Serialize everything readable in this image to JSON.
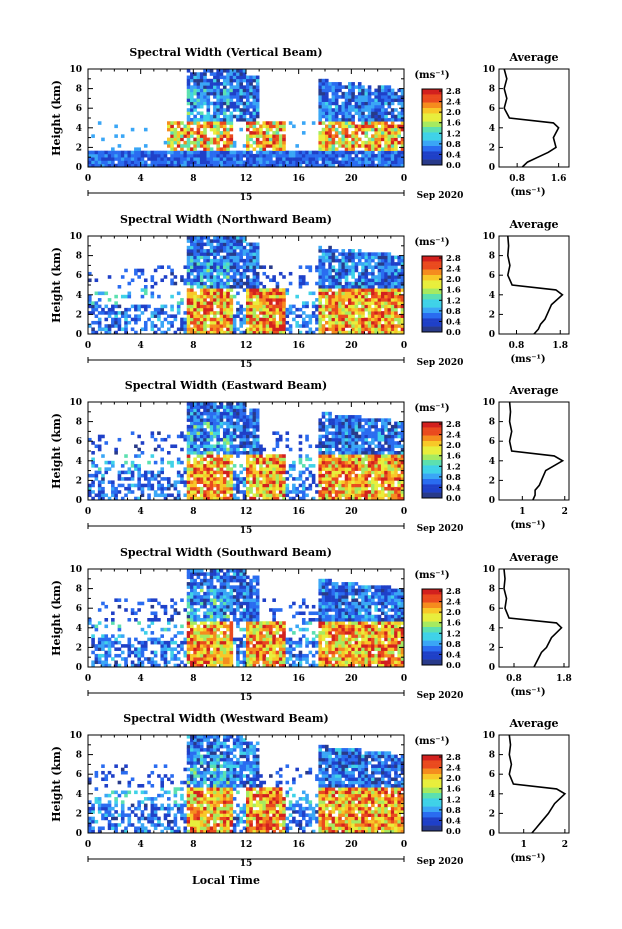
{
  "figure": {
    "date_label": "Sep 2020",
    "xlabel_bottom": "Local Time",
    "ylabel": "Height (km)",
    "avg_title": "Average",
    "unit_label": "(ms⁻¹)",
    "day_label": "15"
  },
  "chart_data": [
    {
      "type": "heatmap",
      "title": "Spectral Width (Vertical Beam)",
      "xlabel": "",
      "ylabel": "Height (km)",
      "x_ticks": [
        "0",
        "4",
        "8",
        "12",
        "16",
        "20",
        "0"
      ],
      "y_ticks": [
        "0",
        "2",
        "4",
        "6",
        "8",
        "10"
      ],
      "xlim": [
        0,
        24
      ],
      "ylim": [
        0,
        10
      ],
      "colorbar": {
        "label": "(ms⁻¹)",
        "range": [
          0,
          2.8
        ],
        "ticks": [
          "2.8",
          "2.4",
          "2.0",
          "1.6",
          "1.2",
          "0.8",
          "0.4",
          "0.0"
        ]
      },
      "average_profile": {
        "title": "Average",
        "xlabel": "(ms⁻¹)",
        "x_ticks": [
          "0.8",
          "1.6"
        ],
        "xlim": [
          0.45,
          1.8
        ],
        "y_ticks": [
          "0",
          "2",
          "4",
          "6",
          "8",
          "10"
        ],
        "height_km": [
          0,
          0.5,
          1,
          1.5,
          2,
          3,
          4,
          4.5,
          5,
          6,
          7,
          8,
          9,
          10
        ],
        "width_ms": [
          0.9,
          1.0,
          1.2,
          1.4,
          1.55,
          1.5,
          1.6,
          1.5,
          0.65,
          0.55,
          0.6,
          0.55,
          0.6,
          0.55
        ]
      }
    },
    {
      "type": "heatmap",
      "title": "Spectral Width (Northward Beam)",
      "xlabel": "",
      "ylabel": "Height (km)",
      "x_ticks": [
        "0",
        "4",
        "8",
        "12",
        "16",
        "20",
        "0"
      ],
      "y_ticks": [
        "0",
        "2",
        "4",
        "6",
        "8",
        "10"
      ],
      "xlim": [
        0,
        24
      ],
      "ylim": [
        0,
        10
      ],
      "colorbar": {
        "label": "(ms⁻¹)",
        "range": [
          0,
          2.8
        ],
        "ticks": [
          "2.8",
          "2.4",
          "2.0",
          "1.6",
          "1.2",
          "0.8",
          "0.4",
          "0.0"
        ]
      },
      "average_profile": {
        "title": "Average",
        "xlabel": "(ms⁻¹)",
        "x_ticks": [
          "0.8",
          "1.8"
        ],
        "xlim": [
          0.4,
          2.0
        ],
        "y_ticks": [
          "0",
          "2",
          "4",
          "6",
          "8",
          "10"
        ],
        "height_km": [
          0,
          0.5,
          1,
          1.5,
          2,
          3,
          4,
          4.5,
          5,
          6,
          7,
          8,
          9,
          10
        ],
        "width_ms": [
          1.2,
          1.3,
          1.35,
          1.45,
          1.5,
          1.6,
          1.85,
          1.7,
          0.7,
          0.6,
          0.65,
          0.6,
          0.62,
          0.6
        ]
      }
    },
    {
      "type": "heatmap",
      "title": "Spectral Width (Eastward Beam)",
      "xlabel": "",
      "ylabel": "Height (km)",
      "x_ticks": [
        "0",
        "4",
        "8",
        "12",
        "16",
        "20",
        "0"
      ],
      "y_ticks": [
        "0",
        "2",
        "4",
        "6",
        "8",
        "10"
      ],
      "xlim": [
        0,
        24
      ],
      "ylim": [
        0,
        10
      ],
      "colorbar": {
        "label": "(ms⁻¹)",
        "range": [
          0,
          2.8
        ],
        "ticks": [
          "2.8",
          "2.4",
          "2.0",
          "1.6",
          "1.2",
          "0.8",
          "0.4",
          "0.0"
        ]
      },
      "average_profile": {
        "title": "Average",
        "xlabel": "(ms⁻¹)",
        "x_ticks": [
          "1",
          "2"
        ],
        "xlim": [
          0.45,
          2.1
        ],
        "y_ticks": [
          "0",
          "2",
          "4",
          "6",
          "8",
          "10"
        ],
        "height_km": [
          0,
          0.5,
          1,
          1.5,
          2,
          3,
          4,
          4.5,
          5,
          6,
          7,
          8,
          9,
          10
        ],
        "width_ms": [
          1.25,
          1.3,
          1.3,
          1.4,
          1.45,
          1.55,
          1.95,
          1.75,
          0.75,
          0.7,
          0.75,
          0.7,
          0.72,
          0.7
        ]
      }
    },
    {
      "type": "heatmap",
      "title": "Spectral Width (Southward Beam)",
      "xlabel": "",
      "ylabel": "Height (km)",
      "x_ticks": [
        "0",
        "4",
        "8",
        "12",
        "16",
        "20",
        "0"
      ],
      "y_ticks": [
        "0",
        "2",
        "4",
        "6",
        "8",
        "10"
      ],
      "xlim": [
        0,
        24
      ],
      "ylim": [
        0,
        10
      ],
      "colorbar": {
        "label": "(ms⁻¹)",
        "range": [
          0,
          2.8
        ],
        "ticks": [
          "2.8",
          "2.4",
          "2.0",
          "1.6",
          "1.2",
          "0.8",
          "0.4",
          "0.0"
        ]
      },
      "average_profile": {
        "title": "Average",
        "xlabel": "(ms⁻¹)",
        "x_ticks": [
          "0.8",
          "1.8"
        ],
        "xlim": [
          0.5,
          1.9
        ],
        "y_ticks": [
          "0",
          "2",
          "4",
          "6",
          "8",
          "10"
        ],
        "height_km": [
          0,
          0.5,
          1,
          1.5,
          2,
          3,
          4,
          4.5,
          5,
          6,
          7,
          8,
          9,
          10
        ],
        "width_ms": [
          1.2,
          1.25,
          1.3,
          1.35,
          1.45,
          1.55,
          1.75,
          1.65,
          0.7,
          0.62,
          0.65,
          0.6,
          0.62,
          0.6
        ]
      }
    },
    {
      "type": "heatmap",
      "title": "Spectral Width (Westward Beam)",
      "xlabel": "Local Time",
      "ylabel": "Height (km)",
      "x_ticks": [
        "0",
        "4",
        "8",
        "12",
        "16",
        "20",
        "0"
      ],
      "y_ticks": [
        "0",
        "2",
        "4",
        "6",
        "8",
        "10"
      ],
      "xlim": [
        0,
        24
      ],
      "ylim": [
        0,
        10
      ],
      "colorbar": {
        "label": "(ms⁻¹)",
        "range": [
          0,
          2.8
        ],
        "ticks": [
          "2.8",
          "2.4",
          "2.0",
          "1.6",
          "1.2",
          "0.8",
          "0.4",
          "0.0"
        ]
      },
      "average_profile": {
        "title": "Average",
        "xlabel": "(ms⁻¹)",
        "x_ticks": [
          "1",
          "2"
        ],
        "xlim": [
          0.4,
          2.1
        ],
        "y_ticks": [
          "0",
          "2",
          "4",
          "6",
          "8",
          "10"
        ],
        "height_km": [
          0,
          0.5,
          1,
          1.5,
          2,
          3,
          4,
          4.5,
          5,
          6,
          7,
          8,
          9,
          10
        ],
        "width_ms": [
          1.2,
          1.3,
          1.4,
          1.5,
          1.6,
          1.75,
          2.0,
          1.8,
          0.75,
          0.65,
          0.7,
          0.65,
          0.68,
          0.65
        ]
      }
    }
  ]
}
